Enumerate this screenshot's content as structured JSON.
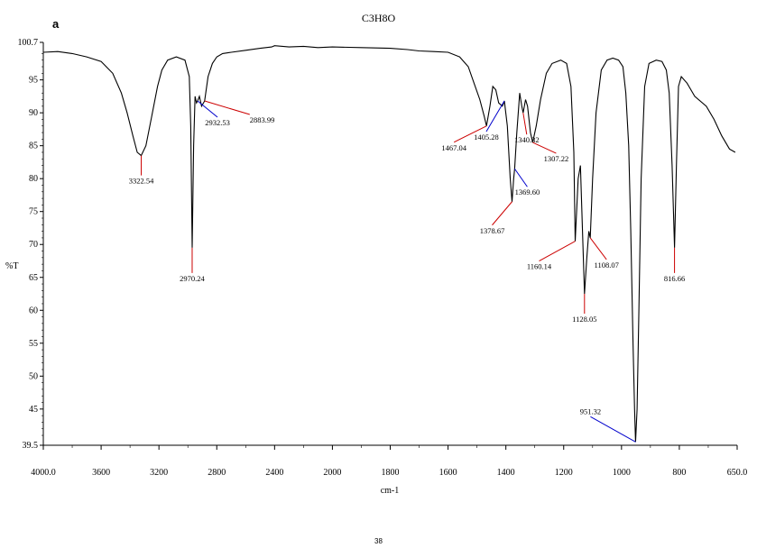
{
  "figure": {
    "panel_letter": "a",
    "page_number": "38"
  },
  "chart_data": {
    "type": "line",
    "title": "C3H8O",
    "xlabel": "cm-1",
    "ylabel": "%T",
    "xlim": [
      4000.0,
      650.0
    ],
    "ylim": [
      39.5,
      100.7
    ],
    "x_reversed": true,
    "x_ticks": [
      4000,
      3600,
      3200,
      2800,
      2400,
      2000,
      1800,
      1600,
      1400,
      1200,
      1000,
      800,
      650
    ],
    "x_tick_labels": [
      "4000.0",
      "3600",
      "3200",
      "2800",
      "2400",
      "2000",
      "1800",
      "1600",
      "1400",
      "1200",
      "1000",
      "800",
      "650.0"
    ],
    "y_ticks": [
      39.5,
      45,
      50,
      55,
      60,
      65,
      70,
      75,
      80,
      85,
      90,
      95,
      100.7
    ],
    "y_tick_labels": [
      "39.5",
      "45",
      "50",
      "55",
      "60",
      "65",
      "70",
      "75",
      "80",
      "85",
      "90",
      "95",
      "100.7"
    ],
    "y_label_ticks": [
      39.5,
      45,
      50,
      55,
      60,
      65,
      70,
      75,
      80,
      85,
      90,
      95,
      100.7
    ],
    "series": [
      {
        "color": "#000000",
        "points": [
          [
            4000,
            99.2
          ],
          [
            3900,
            99.3
          ],
          [
            3800,
            99.0
          ],
          [
            3700,
            98.5
          ],
          [
            3600,
            97.8
          ],
          [
            3520,
            96.0
          ],
          [
            3460,
            93.0
          ],
          [
            3420,
            90.0
          ],
          [
            3380,
            86.5
          ],
          [
            3350,
            84.0
          ],
          [
            3322.54,
            83.5
          ],
          [
            3290,
            85.0
          ],
          [
            3250,
            89.5
          ],
          [
            3210,
            94.0
          ],
          [
            3180,
            96.5
          ],
          [
            3140,
            98.0
          ],
          [
            3080,
            98.5
          ],
          [
            3020,
            98.0
          ],
          [
            2990,
            95.5
          ],
          [
            2980,
            88.0
          ],
          [
            2970.24,
            69.5
          ],
          [
            2960,
            85.0
          ],
          [
            2950,
            92.5
          ],
          [
            2940,
            91.5
          ],
          [
            2932.53,
            91.8
          ],
          [
            2920,
            92.5
          ],
          [
            2905,
            91.0
          ],
          [
            2883.99,
            91.8
          ],
          [
            2860,
            95.5
          ],
          [
            2830,
            97.5
          ],
          [
            2800,
            98.5
          ],
          [
            2760,
            99.0
          ],
          [
            2700,
            99.2
          ],
          [
            2600,
            99.5
          ],
          [
            2500,
            99.8
          ],
          [
            2420,
            100.0
          ],
          [
            2400,
            100.2
          ],
          [
            2300,
            100.0
          ],
          [
            2200,
            100.1
          ],
          [
            2100,
            99.9
          ],
          [
            2000,
            100.0
          ],
          [
            1900,
            99.9
          ],
          [
            1800,
            99.8
          ],
          [
            1740,
            99.6
          ],
          [
            1700,
            99.4
          ],
          [
            1650,
            99.3
          ],
          [
            1600,
            99.2
          ],
          [
            1560,
            98.5
          ],
          [
            1530,
            97.0
          ],
          [
            1510,
            94.5
          ],
          [
            1490,
            92.0
          ],
          [
            1475,
            89.5
          ],
          [
            1467.04,
            88.0
          ],
          [
            1455,
            91.0
          ],
          [
            1445,
            94.0
          ],
          [
            1435,
            93.5
          ],
          [
            1425,
            91.5
          ],
          [
            1412,
            91.0
          ],
          [
            1405.28,
            91.8
          ],
          [
            1395,
            88.0
          ],
          [
            1385,
            80.0
          ],
          [
            1378.67,
            76.5
          ],
          [
            1373,
            80.0
          ],
          [
            1369.6,
            81.5
          ],
          [
            1362,
            87.0
          ],
          [
            1352,
            93.0
          ],
          [
            1345,
            91.0
          ],
          [
            1340.32,
            90.0
          ],
          [
            1332,
            92.0
          ],
          [
            1325,
            91.0
          ],
          [
            1315,
            87.0
          ],
          [
            1307.22,
            85.5
          ],
          [
            1295,
            88.0
          ],
          [
            1280,
            92.0
          ],
          [
            1260,
            96.0
          ],
          [
            1240,
            97.5
          ],
          [
            1210,
            98.0
          ],
          [
            1190,
            97.5
          ],
          [
            1175,
            94.0
          ],
          [
            1165,
            84.0
          ],
          [
            1160.14,
            70.5
          ],
          [
            1150,
            80.0
          ],
          [
            1142,
            82.0
          ],
          [
            1135,
            72.0
          ],
          [
            1128.05,
            62.5
          ],
          [
            1120,
            68.0
          ],
          [
            1113,
            72.0
          ],
          [
            1108.07,
            71.0
          ],
          [
            1100,
            80.0
          ],
          [
            1088,
            90.0
          ],
          [
            1070,
            96.5
          ],
          [
            1050,
            98.0
          ],
          [
            1030,
            98.3
          ],
          [
            1010,
            98.0
          ],
          [
            995,
            97.0
          ],
          [
            985,
            93.0
          ],
          [
            975,
            85.0
          ],
          [
            968,
            72.0
          ],
          [
            960,
            55.0
          ],
          [
            955,
            45.0
          ],
          [
            951.32,
            40.0
          ],
          [
            946,
            45.0
          ],
          [
            940,
            60.0
          ],
          [
            932,
            80.0
          ],
          [
            920,
            94.0
          ],
          [
            905,
            97.5
          ],
          [
            880,
            98.0
          ],
          [
            860,
            97.8
          ],
          [
            845,
            96.5
          ],
          [
            835,
            93.0
          ],
          [
            825,
            82.0
          ],
          [
            816.66,
            69.5
          ],
          [
            810,
            82.0
          ],
          [
            803,
            94.0
          ],
          [
            795,
            95.5
          ],
          [
            780,
            94.5
          ],
          [
            760,
            92.5
          ],
          [
            730,
            91.0
          ],
          [
            710,
            89.0
          ],
          [
            690,
            86.5
          ],
          [
            670,
            84.5
          ],
          [
            655,
            84.0
          ]
        ]
      }
    ],
    "peaks": [
      {
        "x": 3322.54,
        "y": 83.5,
        "label": "3322.54",
        "color": "#cc0000"
      },
      {
        "x": 2970.24,
        "y": 69.5,
        "label": "2970.24",
        "color": "#cc0000"
      },
      {
        "x": 2932.53,
        "y": 91.8,
        "label": "2932.53",
        "color": "#0000cc"
      },
      {
        "x": 2883.99,
        "y": 91.8,
        "label": "2883.99",
        "color": "#cc0000"
      },
      {
        "x": 1467.04,
        "y": 88.0,
        "label": "1467.04",
        "color": "#cc0000"
      },
      {
        "x": 1405.28,
        "y": 91.8,
        "label": "1405.28",
        "color": "#0000cc"
      },
      {
        "x": 1378.67,
        "y": 76.5,
        "label": "1378.67",
        "color": "#cc0000"
      },
      {
        "x": 1369.6,
        "y": 81.5,
        "label": "1369.60",
        "color": "#0000cc"
      },
      {
        "x": 1340.32,
        "y": 90.0,
        "label": "1340.32",
        "color": "#cc0000"
      },
      {
        "x": 1307.22,
        "y": 85.5,
        "label": "1307.22",
        "color": "#cc0000"
      },
      {
        "x": 1160.14,
        "y": 70.5,
        "label": "1160.14",
        "color": "#cc0000"
      },
      {
        "x": 1128.05,
        "y": 62.5,
        "label": "1128.05",
        "color": "#cc0000"
      },
      {
        "x": 1108.07,
        "y": 71.0,
        "label": "1108.07",
        "color": "#cc0000"
      },
      {
        "x": 951.32,
        "y": 40.0,
        "label": "951.32",
        "color": "#0000cc"
      },
      {
        "x": 816.66,
        "y": 69.5,
        "label": "816.66",
        "color": "#cc0000"
      }
    ]
  }
}
